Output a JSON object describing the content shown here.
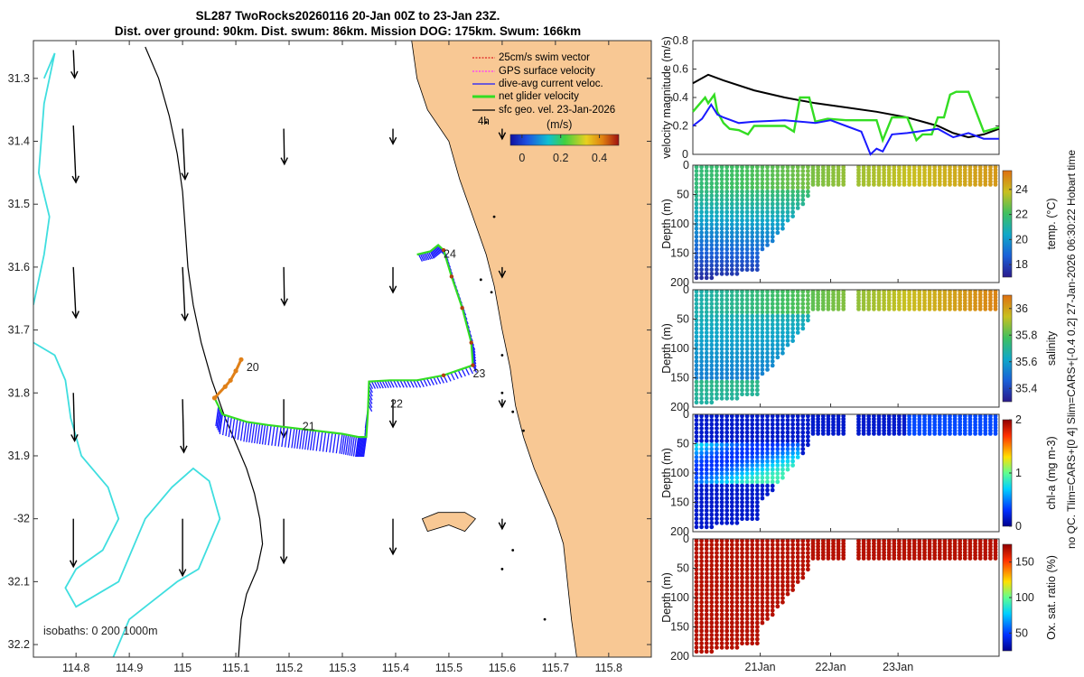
{
  "title": {
    "line1": "SL287 TwoRocks20260116 20-Jan 00Z to 23-Jan 23Z.",
    "line2": "Dist. over ground: 90km. Dist. swum: 86km. Mission DOG: 175km. Swum: 166km"
  },
  "colors": {
    "land": "#f8c894",
    "isobath": "#3fdedf",
    "swim": "#e02020",
    "gps": "#ff33ff",
    "current": "#1a1aff",
    "net": "#33dd22",
    "geo": "#000000"
  },
  "chart_data": [
    {
      "type": "map",
      "xlim": [
        114.72,
        115.88
      ],
      "ylim": [
        -32.22,
        -31.24
      ],
      "xticks": [
        114.8,
        114.9,
        115,
        115.1,
        115.2,
        115.3,
        115.4,
        115.5,
        115.6,
        115.7,
        115.8
      ],
      "xtick_labels": [
        "114.8",
        "114.9",
        "115",
        "115.1",
        "115.2",
        "115.3",
        "115.4",
        "115.5",
        "115.6",
        "115.7",
        "115.8"
      ],
      "yticks": [
        -31.3,
        -31.4,
        -31.5,
        -31.6,
        -31.7,
        -31.8,
        -31.9,
        -32,
        -32.1,
        -32.2
      ],
      "ytick_labels": [
        "31.3",
        "31.4",
        "31.5",
        "31.6",
        "31.7",
        "31.8",
        "31.9",
        "-32",
        "32.1",
        "32.2"
      ],
      "legend": [
        "25cm/s swim vector",
        "GPS surface velocity",
        "dive-avg current veloc.",
        "net glider velocity",
        "sfc geo. vel. 23-Jan-2026"
      ],
      "track_annotation": "4h",
      "colorbar": {
        "label": "(m/s)",
        "ticks": [
          0,
          0.2,
          0.4
        ],
        "tick_labels": [
          "0",
          "0.2",
          "0.4"
        ],
        "range": [
          -0.06,
          0.5
        ]
      },
      "isobaths_note": "isobaths: 0   200  1000m",
      "day_labels": [
        {
          "text": "20",
          "lon": 115.12,
          "lat": -31.765
        },
        {
          "text": "21",
          "lon": 115.225,
          "lat": -31.859
        },
        {
          "text": "22",
          "lon": 115.39,
          "lat": -31.823
        },
        {
          "text": "23",
          "lon": 115.545,
          "lat": -31.775
        },
        {
          "text": "24",
          "lon": 115.49,
          "lat": -31.585
        }
      ],
      "track": [
        [
          115.06,
          -31.808
        ],
        [
          115.075,
          -31.834
        ],
        [
          115.12,
          -31.846
        ],
        [
          115.16,
          -31.851
        ],
        [
          115.21,
          -31.856
        ],
        [
          115.25,
          -31.86
        ],
        [
          115.3,
          -31.865
        ],
        [
          115.33,
          -31.87
        ],
        [
          115.345,
          -31.87
        ],
        [
          115.348,
          -31.83
        ],
        [
          115.35,
          -31.782
        ],
        [
          115.39,
          -31.78
        ],
        [
          115.44,
          -31.78
        ],
        [
          115.49,
          -31.772
        ],
        [
          115.545,
          -31.756
        ],
        [
          115.542,
          -31.72
        ],
        [
          115.525,
          -31.665
        ],
        [
          115.505,
          -31.615
        ],
        [
          115.49,
          -31.573
        ],
        [
          115.48,
          -31.565
        ],
        [
          115.465,
          -31.575
        ],
        [
          115.44,
          -31.58
        ]
      ],
      "track_start": [
        [
          115.06,
          -31.808
        ],
        [
          115.08,
          -31.79
        ],
        [
          115.09,
          -31.78
        ],
        [
          115.1,
          -31.765
        ],
        [
          115.11,
          -31.747
        ]
      ],
      "geo_vectors": [
        {
          "lon": 114.795,
          "lat": -31.255,
          "u": 0.01,
          "v": -0.22
        },
        {
          "lon": 114.795,
          "lat": -31.375,
          "u": 0.02,
          "v": -0.45
        },
        {
          "lon": 114.795,
          "lat": -31.6,
          "u": 0.02,
          "v": -0.4
        },
        {
          "lon": 114.795,
          "lat": -31.8,
          "u": 0.01,
          "v": -0.38
        },
        {
          "lon": 114.795,
          "lat": -32.0,
          "u": 0.0,
          "v": -0.38
        },
        {
          "lon": 115.0,
          "lat": -31.38,
          "u": 0.02,
          "v": -0.4
        },
        {
          "lon": 115.0,
          "lat": -31.6,
          "u": 0.02,
          "v": -0.42
        },
        {
          "lon": 115.0,
          "lat": -31.81,
          "u": 0.01,
          "v": -0.42
        },
        {
          "lon": 115.0,
          "lat": -32.0,
          "u": 0.0,
          "v": -0.45
        },
        {
          "lon": 115.19,
          "lat": -31.38,
          "u": 0.005,
          "v": -0.28
        },
        {
          "lon": 115.19,
          "lat": -31.6,
          "u": 0.005,
          "v": -0.3
        },
        {
          "lon": 115.19,
          "lat": -31.81,
          "u": 0.0,
          "v": -0.3
        },
        {
          "lon": 115.19,
          "lat": -32.0,
          "u": 0.0,
          "v": -0.35
        },
        {
          "lon": 115.395,
          "lat": -31.38,
          "u": 0.0,
          "v": -0.12
        },
        {
          "lon": 115.395,
          "lat": -31.6,
          "u": 0.0,
          "v": -0.2
        },
        {
          "lon": 115.395,
          "lat": -31.81,
          "u": 0.0,
          "v": -0.22
        },
        {
          "lon": 115.395,
          "lat": -32.0,
          "u": 0.0,
          "v": -0.28
        },
        {
          "lon": 115.6,
          "lat": -31.38,
          "u": 0.0,
          "v": -0.08
        },
        {
          "lon": 115.6,
          "lat": -31.6,
          "u": 0.0,
          "v": -0.08
        },
        {
          "lon": 115.6,
          "lat": -31.81,
          "u": 0.0,
          "v": -0.06
        },
        {
          "lon": 115.6,
          "lat": -32.0,
          "u": 0.0,
          "v": -0.08
        }
      ],
      "coastline": [
        [
          115.43,
          -31.24
        ],
        [
          115.44,
          -31.3
        ],
        [
          115.46,
          -31.35
        ],
        [
          115.5,
          -31.4
        ],
        [
          115.52,
          -31.46
        ],
        [
          115.545,
          -31.52
        ],
        [
          115.57,
          -31.58
        ],
        [
          115.585,
          -31.63
        ],
        [
          115.6,
          -31.7
        ],
        [
          115.615,
          -31.76
        ],
        [
          115.625,
          -31.82
        ],
        [
          115.64,
          -31.87
        ],
        [
          115.66,
          -31.92
        ],
        [
          115.68,
          -31.96
        ],
        [
          115.7,
          -32.0
        ],
        [
          115.715,
          -32.04
        ],
        [
          115.72,
          -32.08
        ],
        [
          115.725,
          -32.12
        ],
        [
          115.73,
          -32.16
        ],
        [
          115.74,
          -32.22
        ],
        [
          115.88,
          -32.22
        ],
        [
          115.88,
          -31.24
        ]
      ],
      "island": [
        [
          115.45,
          -32.0
        ],
        [
          115.48,
          -31.99
        ],
        [
          115.53,
          -31.99
        ],
        [
          115.55,
          -32.0
        ],
        [
          115.53,
          -32.02
        ],
        [
          115.5,
          -32.01
        ],
        [
          115.46,
          -32.02
        ]
      ],
      "isobath_200": [
        [
          114.93,
          -31.25
        ],
        [
          114.955,
          -31.3
        ],
        [
          114.975,
          -31.36
        ],
        [
          114.99,
          -31.42
        ],
        [
          115.0,
          -31.48
        ],
        [
          115.005,
          -31.54
        ],
        [
          115.01,
          -31.6
        ],
        [
          115.02,
          -31.66
        ],
        [
          115.035,
          -31.72
        ],
        [
          115.055,
          -31.78
        ],
        [
          115.08,
          -31.84
        ],
        [
          115.1,
          -31.88
        ],
        [
          115.12,
          -31.92
        ],
        [
          115.135,
          -31.96
        ],
        [
          115.145,
          -32.0
        ],
        [
          115.15,
          -32.04
        ],
        [
          115.14,
          -32.08
        ],
        [
          115.12,
          -32.12
        ],
        [
          115.11,
          -32.16
        ],
        [
          115.105,
          -32.22
        ]
      ],
      "isobath_1000a": [
        [
          114.74,
          -31.3
        ],
        [
          114.76,
          -31.26
        ],
        [
          114.74,
          -31.34
        ],
        [
          114.73,
          -31.45
        ],
        [
          114.75,
          -31.52
        ],
        [
          114.74,
          -31.58
        ],
        [
          114.72,
          -31.66
        ]
      ],
      "isobath_1000b": [
        [
          114.72,
          -31.72
        ],
        [
          114.76,
          -31.74
        ],
        [
          114.78,
          -31.78
        ],
        [
          114.79,
          -31.84
        ],
        [
          114.81,
          -31.9
        ],
        [
          114.86,
          -31.95
        ],
        [
          114.88,
          -32.0
        ],
        [
          114.85,
          -32.05
        ],
        [
          114.8,
          -32.08
        ],
        [
          114.78,
          -32.11
        ],
        [
          114.8,
          -32.14
        ],
        [
          114.88,
          -32.1
        ],
        [
          114.93,
          -32.0
        ],
        [
          114.98,
          -31.95
        ],
        [
          115.02,
          -31.92
        ],
        [
          115.05,
          -31.94
        ],
        [
          115.07,
          -32.0
        ],
        [
          115.03,
          -32.08
        ],
        [
          114.99,
          -32.1
        ],
        [
          114.96,
          -32.12
        ],
        [
          114.93,
          -32.14
        ],
        [
          114.9,
          -32.16
        ],
        [
          114.88,
          -32.2
        ],
        [
          114.87,
          -32.22
        ]
      ]
    },
    {
      "type": "line",
      "ylabel": "velocity magnitude (m/s)",
      "ylim": [
        0,
        0.8
      ],
      "yticks": [
        0,
        0.2,
        0.4,
        0.6,
        0.8
      ],
      "ytick_labels": [
        "0",
        "0.2",
        "0.4",
        "0.6",
        "0.8"
      ],
      "xlim": [
        0,
        1
      ],
      "series": [
        {
          "name": "sfc geo. vel.",
          "color": "#000000",
          "x": [
            0,
            0.05,
            0.1,
            0.2,
            0.3,
            0.4,
            0.5,
            0.6,
            0.7,
            0.8,
            0.85,
            0.9,
            0.95,
            1.0
          ],
          "values": [
            0.5,
            0.56,
            0.52,
            0.45,
            0.4,
            0.36,
            0.33,
            0.3,
            0.26,
            0.2,
            0.15,
            0.12,
            0.14,
            0.18
          ]
        },
        {
          "name": "net glider velocity",
          "color": "#33dd22",
          "x": [
            0,
            0.04,
            0.05,
            0.07,
            0.08,
            0.1,
            0.12,
            0.15,
            0.18,
            0.2,
            0.25,
            0.3,
            0.33,
            0.35,
            0.38,
            0.4,
            0.44,
            0.5,
            0.55,
            0.6,
            0.62,
            0.65,
            0.7,
            0.73,
            0.75,
            0.78,
            0.8,
            0.82,
            0.84,
            0.86,
            0.9,
            0.95,
            1.0
          ],
          "values": [
            0.3,
            0.4,
            0.36,
            0.42,
            0.3,
            0.22,
            0.18,
            0.17,
            0.14,
            0.2,
            0.2,
            0.2,
            0.16,
            0.4,
            0.4,
            0.23,
            0.25,
            0.24,
            0.24,
            0.24,
            0.1,
            0.26,
            0.26,
            0.1,
            0.14,
            0.14,
            0.26,
            0.26,
            0.42,
            0.44,
            0.44,
            0.16,
            0.19
          ]
        },
        {
          "name": "dive-avg current veloc.",
          "color": "#1a1aff",
          "x": [
            0,
            0.03,
            0.06,
            0.08,
            0.1,
            0.15,
            0.2,
            0.3,
            0.4,
            0.45,
            0.5,
            0.55,
            0.58,
            0.6,
            0.62,
            0.65,
            0.7,
            0.8,
            0.85,
            0.9,
            0.95,
            1.0
          ],
          "values": [
            0.2,
            0.25,
            0.35,
            0.28,
            0.26,
            0.22,
            0.23,
            0.24,
            0.22,
            0.24,
            0.2,
            0.16,
            0.0,
            0.04,
            0.02,
            0.14,
            0.15,
            0.18,
            0.12,
            0.15,
            0.11,
            0.11
          ]
        }
      ]
    },
    {
      "type": "scatter",
      "ylabel": "Depth (m)",
      "cbar_label": "temp. (°C)",
      "ylim": [
        200,
        0
      ],
      "yticks": [
        0,
        50,
        100,
        150,
        200
      ],
      "ytick_labels": [
        "0",
        "50",
        "100",
        "150",
        "200"
      ],
      "cbar_ticks": [
        18,
        20,
        22,
        24
      ],
      "cbar_range": [
        17,
        25.5
      ],
      "colormap": "parula"
    },
    {
      "type": "scatter",
      "ylabel": "Depth (m)",
      "cbar_label": "salinity",
      "ylim": [
        200,
        0
      ],
      "yticks": [
        0,
        50,
        100,
        150,
        200
      ],
      "ytick_labels": [
        "0",
        "50",
        "100",
        "150",
        "200"
      ],
      "cbar_ticks": [
        35.4,
        35.6,
        35.8,
        36
      ],
      "cbar_range": [
        35.3,
        36.1
      ],
      "colormap": "parula"
    },
    {
      "type": "scatter",
      "ylabel": "Depth (m)",
      "cbar_label": "chl-a (mg m-3)",
      "ylim": [
        200,
        0
      ],
      "yticks": [
        0,
        50,
        100,
        150,
        200
      ],
      "ytick_labels": [
        "0",
        "50",
        "100",
        "150",
        "200"
      ],
      "cbar_ticks": [
        0,
        1,
        2
      ],
      "cbar_range": [
        0,
        2
      ],
      "colormap": "jet"
    },
    {
      "type": "scatter",
      "ylabel": "Depth (m)",
      "cbar_label": "Ox. sat. ratio (%)",
      "ylim": [
        200,
        0
      ],
      "yticks": [
        0,
        50,
        100,
        150,
        200
      ],
      "ytick_labels": [
        "0",
        "50",
        "100",
        "150",
        "200"
      ],
      "cbar_ticks": [
        50,
        100,
        150
      ],
      "cbar_range": [
        25,
        175
      ],
      "colormap": "jet",
      "xtick_labels": [
        "21Jan",
        "22Jan",
        "23Jan"
      ],
      "xticks": [
        0.22,
        0.45,
        0.67
      ]
    }
  ],
  "side_note": "no QC. Tlim=CARS+[0 4] Slim=CARS+[-0.4 0.2] 27-Jan-2026 06:30:22 Hobart time"
}
